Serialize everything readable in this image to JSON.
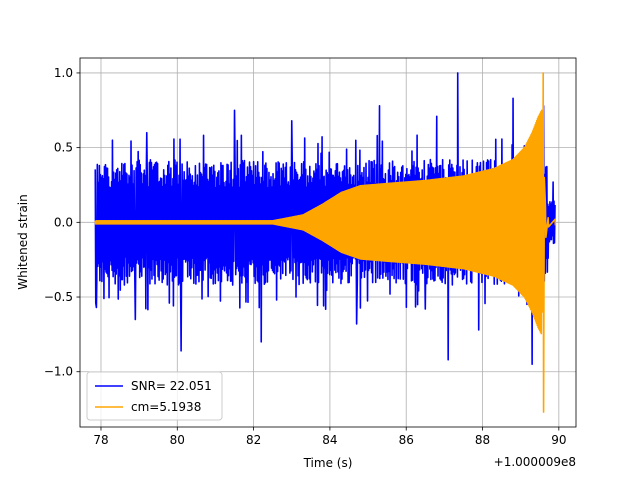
{
  "chart_data": {
    "type": "line",
    "xlabel": "Time (s)",
    "ylabel": "Whitened strain",
    "x_offset_label": "+1.000009e8",
    "xlim": [
      77.45,
      90.45
    ],
    "ylim": [
      -1.37,
      1.1
    ],
    "x_ticks": [
      78,
      80,
      82,
      84,
      86,
      88,
      90
    ],
    "y_ticks": [
      1.0,
      0.5,
      0.0,
      -0.5,
      -1.0
    ],
    "y_tick_labels": [
      "1.0",
      "0.5",
      "0.0",
      "−0.5",
      "−1.0"
    ],
    "grid": true,
    "legend_position": "lower-left",
    "series": [
      {
        "name": "SNR= 22.051",
        "color": "#0000ff",
        "kind": "noise",
        "x_range": [
          77.85,
          89.9
        ],
        "baseline_amplitude": 0.42,
        "peaks": [
          [
            77.88,
            -0.57
          ],
          [
            78.3,
            0.55
          ],
          [
            78.9,
            -0.65
          ],
          [
            79.2,
            0.6
          ],
          [
            80.1,
            -0.86
          ],
          [
            81.5,
            0.75
          ],
          [
            82.2,
            -0.8
          ],
          [
            83.0,
            0.68
          ],
          [
            84.7,
            -0.68
          ],
          [
            85.3,
            0.78
          ],
          [
            86.5,
            -0.58
          ],
          [
            86.8,
            0.71
          ],
          [
            87.1,
            -0.92
          ],
          [
            87.35,
            1.0
          ],
          [
            87.9,
            -0.72
          ],
          [
            88.8,
            0.83
          ],
          [
            89.3,
            -0.95
          ],
          [
            89.6,
            0.78
          ],
          [
            89.72,
            -0.24
          ],
          [
            89.85,
            0.27
          ]
        ]
      },
      {
        "name": "cm=5.1938",
        "color": "#ffa500",
        "kind": "chirp",
        "envelope": [
          [
            77.85,
            0.01
          ],
          [
            82.5,
            0.01
          ],
          [
            83.3,
            0.05
          ],
          [
            83.8,
            0.12
          ],
          [
            84.3,
            0.2
          ],
          [
            84.8,
            0.245
          ],
          [
            85.5,
            0.26
          ],
          [
            86.5,
            0.28
          ],
          [
            87.5,
            0.31
          ],
          [
            88.3,
            0.36
          ],
          [
            88.8,
            0.42
          ],
          [
            89.1,
            0.5
          ],
          [
            89.3,
            0.6
          ],
          [
            89.45,
            0.7
          ],
          [
            89.55,
            0.75
          ]
        ],
        "merger": {
          "x": 89.6,
          "max": 1.0,
          "min": -1.27
        },
        "ringdown": [
          [
            89.65,
            0.1
          ],
          [
            89.72,
            0.03
          ],
          [
            89.9,
            0.02
          ]
        ]
      }
    ]
  }
}
